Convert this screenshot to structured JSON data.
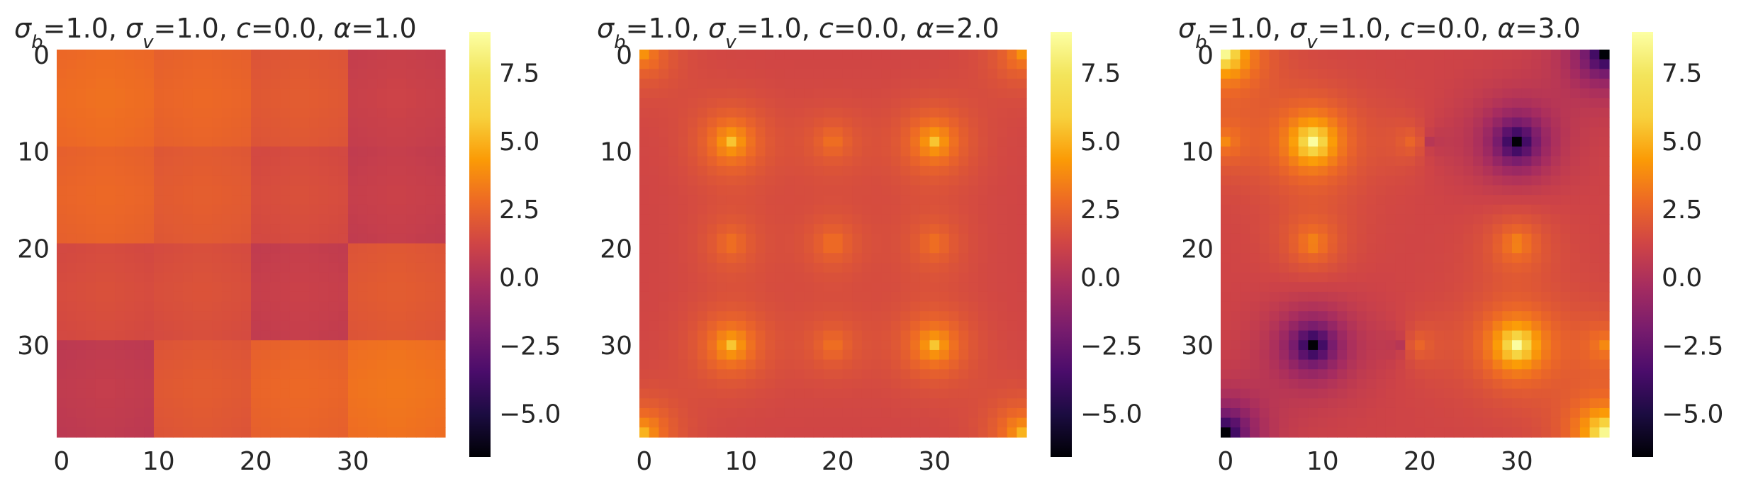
{
  "chart_data": [
    {
      "type": "heatmap",
      "title_params": [
        {
          "sym": "σ",
          "sub": "b",
          "val": "=1.0, "
        },
        {
          "sym": "σ",
          "sub": "v",
          "val": "=1.0, "
        },
        {
          "sym": "c",
          "sub": "",
          "val": "=0.0, "
        },
        {
          "sym": "α",
          "sub": "",
          "val": "=1.0"
        }
      ],
      "sigma_b": 1.0,
      "sigma_v": 1.0,
      "c": 0.0,
      "alpha": 1.0,
      "grid_size": 40,
      "xlim": [
        0,
        40
      ],
      "ylim": [
        40,
        0
      ],
      "x_tick_labels": [
        "0",
        "10",
        "20",
        "30"
      ],
      "y_tick_labels": [
        "0",
        "10",
        "20",
        "30"
      ],
      "colormap": "inferno",
      "color_range": [
        -6.6,
        9.0
      ],
      "colorbar_tick_labels": [
        "7.5",
        "5.0",
        "2.5",
        "0.0",
        "−2.5",
        "−5.0"
      ],
      "block_values": [
        [
          2.8,
          2.5,
          2.0,
          0.9
        ],
        [
          2.5,
          2.1,
          1.5,
          0.8
        ],
        [
          1.5,
          1.6,
          0.8,
          2.0
        ],
        [
          0.6,
          2.0,
          2.5,
          3.0
        ]
      ],
      "grid_off": true
    },
    {
      "type": "heatmap",
      "title_params": [
        {
          "sym": "σ",
          "sub": "b",
          "val": "=1.0, "
        },
        {
          "sym": "σ",
          "sub": "v",
          "val": "=1.0, "
        },
        {
          "sym": "c",
          "sub": "",
          "val": "=0.0, "
        },
        {
          "sym": "α",
          "sub": "",
          "val": "=2.0"
        }
      ],
      "sigma_b": 1.0,
      "sigma_v": 1.0,
      "c": 0.0,
      "alpha": 2.0,
      "grid_size": 40,
      "xlim": [
        0,
        40
      ],
      "ylim": [
        40,
        0
      ],
      "x_tick_labels": [
        "0",
        "10",
        "20",
        "30"
      ],
      "y_tick_labels": [
        "0",
        "10",
        "20",
        "30"
      ],
      "colormap": "inferno",
      "color_range": [
        -6.6,
        9.0
      ],
      "colorbar_tick_labels": [
        "7.5",
        "5.0",
        "2.5",
        "0.0",
        "−2.5",
        "−5.0"
      ],
      "background_value": 1.2,
      "hotspots": [
        {
          "x": 0,
          "y": 0,
          "value": 4.0
        },
        {
          "x": 9,
          "y": 9,
          "value": 5.5
        },
        {
          "x": 30,
          "y": 9,
          "value": 5.5
        },
        {
          "x": 39,
          "y": 0,
          "value": 4.0
        },
        {
          "x": 9,
          "y": 30,
          "value": 5.5
        },
        {
          "x": 30,
          "y": 30,
          "value": 5.5
        },
        {
          "x": 0,
          "y": 39,
          "value": 5.0
        },
        {
          "x": 39,
          "y": 39,
          "value": 5.0
        },
        {
          "x": 19.5,
          "y": 19.5,
          "value": 3.2
        },
        {
          "x": 19.5,
          "y": 9,
          "value": 3.2
        },
        {
          "x": 9,
          "y": 19.5,
          "value": 3.2
        },
        {
          "x": 30,
          "y": 19.5,
          "value": 3.2
        },
        {
          "x": 19.5,
          "y": 30,
          "value": 3.2
        }
      ],
      "grid_off": true
    },
    {
      "type": "heatmap",
      "title_params": [
        {
          "sym": "σ",
          "sub": "b",
          "val": "=1.0, "
        },
        {
          "sym": "σ",
          "sub": "v",
          "val": "=1.0, "
        },
        {
          "sym": "c",
          "sub": "",
          "val": "=0.0, "
        },
        {
          "sym": "α",
          "sub": "",
          "val": "=3.0"
        }
      ],
      "sigma_b": 1.0,
      "sigma_v": 1.0,
      "c": 0.0,
      "alpha": 3.0,
      "grid_size": 40,
      "xlim": [
        0,
        40
      ],
      "ylim": [
        40,
        0
      ],
      "x_tick_labels": [
        "0",
        "10",
        "20",
        "30"
      ],
      "y_tick_labels": [
        "0",
        "10",
        "20",
        "30"
      ],
      "colormap": "inferno",
      "color_range": [
        -6.6,
        9.0
      ],
      "colorbar_tick_labels": [
        "7.5",
        "5.0",
        "2.5",
        "0.0",
        "−2.5",
        "−5.0"
      ],
      "background_value": 1.2,
      "hotspots": [
        {
          "x": 0,
          "y": 0,
          "value": 8.5
        },
        {
          "x": 9,
          "y": 9,
          "value": 8.8
        },
        {
          "x": 30,
          "y": 30,
          "value": 8.8
        },
        {
          "x": 39,
          "y": 39,
          "value": 8.5
        },
        {
          "x": 39,
          "y": 0,
          "value": -6.5
        },
        {
          "x": 30,
          "y": 9,
          "value": -6.5
        },
        {
          "x": 9,
          "y": 30,
          "value": -6.5
        },
        {
          "x": 0,
          "y": 39,
          "value": -6.5
        },
        {
          "x": 19.5,
          "y": 9,
          "value": 4.0
        },
        {
          "x": 21,
          "y": 9,
          "value": -1.0
        },
        {
          "x": 9,
          "y": 19.5,
          "value": 4.0
        },
        {
          "x": 19.5,
          "y": 30,
          "value": 4.0
        },
        {
          "x": 18,
          "y": 30,
          "value": -1.0
        },
        {
          "x": 30,
          "y": 19.5,
          "value": 4.0
        },
        {
          "x": 0,
          "y": 9,
          "value": 3.5
        },
        {
          "x": 39,
          "y": 30,
          "value": 3.5
        }
      ],
      "grid_off": true
    }
  ]
}
